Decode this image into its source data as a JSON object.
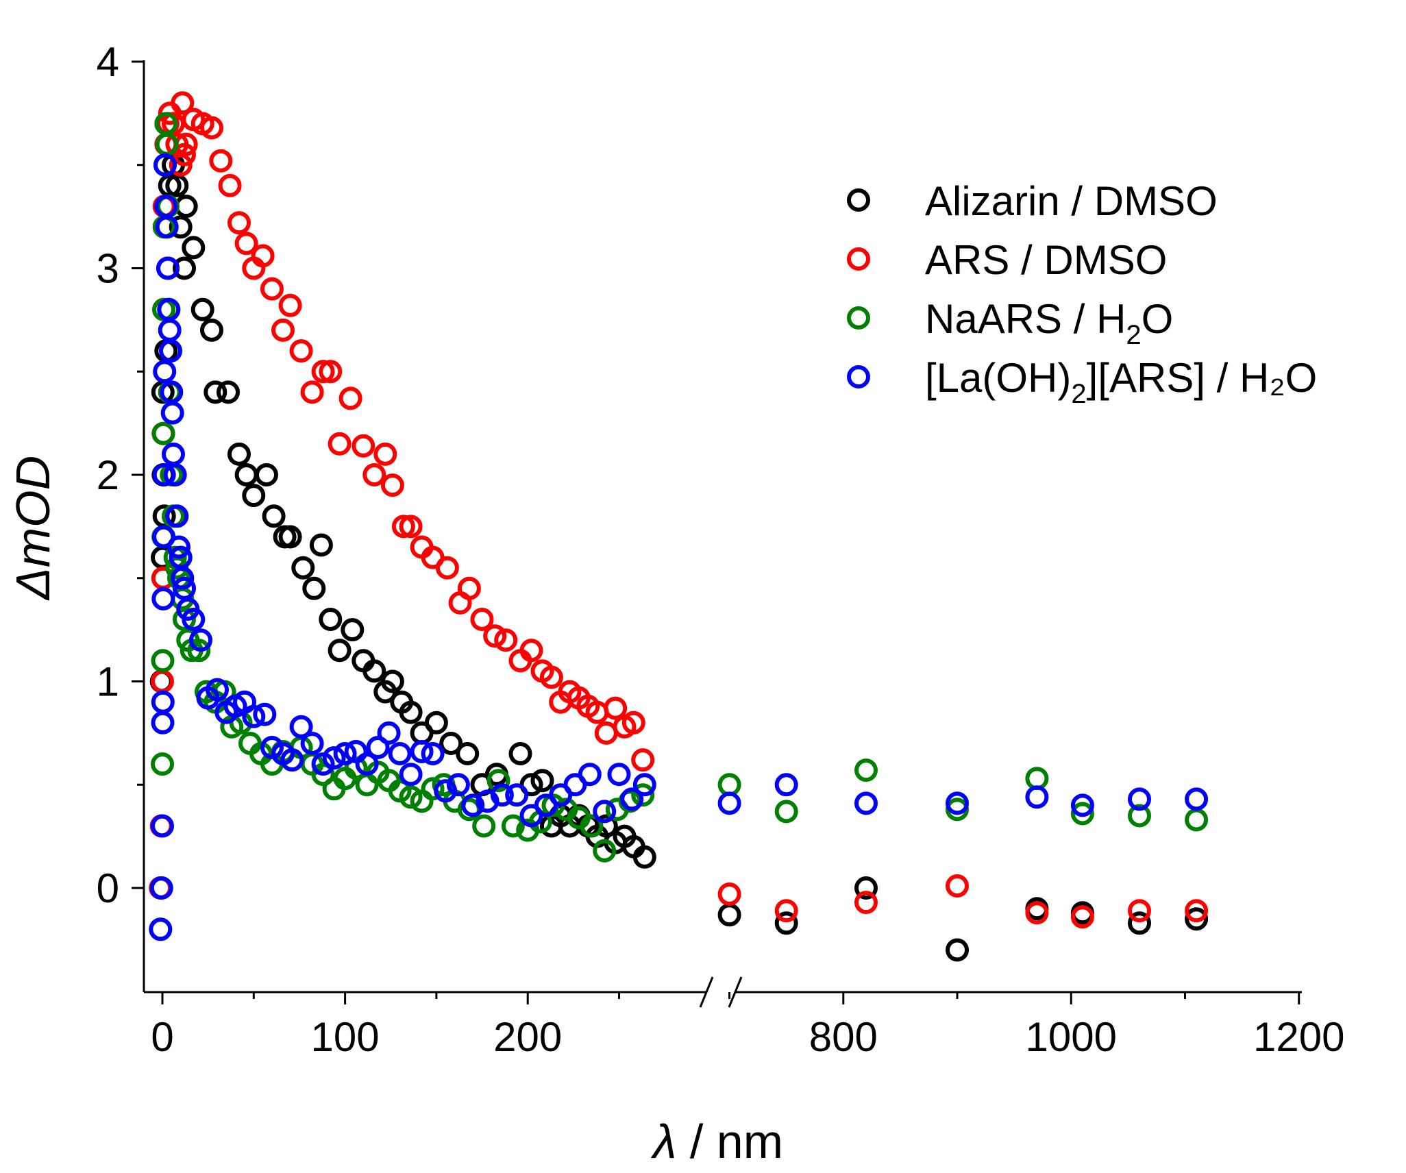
{
  "chart_data": {
    "type": "scatter",
    "xlabel_symbol": "λ",
    "xlabel_rest": " / nm",
    "ylabel": "ΔmOD",
    "ylim": [
      -0.5,
      4
    ],
    "yticks": [
      "0",
      "1",
      "2",
      "3",
      "4"
    ],
    "x_axis_break": {
      "left_segment": [
        -10,
        270
      ],
      "right_segment": [
        600,
        1200
      ]
    },
    "xticks_left": [
      "0",
      "100",
      "200"
    ],
    "xticks_right": [
      "800",
      "1000",
      "1200"
    ],
    "legend_position": "top-right",
    "series": [
      {
        "name": "Alizarin / DMSO",
        "legend": {
          "main": "Alizarin / DMSO",
          "sub": "",
          "tail": ""
        },
        "color": "#000000",
        "x": [
          -1,
          -0.5,
          0,
          0.3,
          0.5,
          1,
          2,
          3,
          4,
          6,
          8,
          10,
          12,
          13,
          17,
          22,
          27,
          29,
          36,
          42,
          46,
          50,
          57,
          61,
          67,
          70,
          77,
          83,
          87,
          92,
          97,
          104,
          110,
          116,
          122,
          126,
          131,
          136,
          142,
          150,
          158,
          167,
          175,
          183,
          196,
          202,
          208,
          213,
          218,
          223,
          228,
          233,
          238,
          243,
          248,
          253,
          258,
          264,
          700,
          750,
          820,
          900,
          970,
          1010,
          1060,
          1110
        ],
        "y": [
          0.0,
          1.0,
          1.6,
          2.4,
          2.0,
          1.8,
          2.6,
          3.0,
          3.4,
          3.5,
          3.4,
          3.2,
          3.0,
          3.3,
          3.1,
          2.8,
          2.7,
          2.4,
          2.4,
          2.1,
          2.0,
          1.9,
          2.0,
          1.8,
          1.7,
          1.7,
          1.55,
          1.45,
          1.66,
          1.3,
          1.15,
          1.25,
          1.1,
          1.05,
          0.95,
          1.0,
          0.9,
          0.85,
          0.75,
          0.8,
          0.7,
          0.65,
          0.5,
          0.55,
          0.65,
          0.5,
          0.52,
          0.3,
          0.35,
          0.3,
          0.35,
          0.3,
          0.25,
          0.3,
          0.22,
          0.25,
          0.2,
          0.15,
          -0.13,
          -0.17,
          0.0,
          -0.3,
          -0.1,
          -0.12,
          -0.17,
          -0.15
        ],
        "note": ""
      },
      {
        "name": "ARS / DMSO",
        "legend": {
          "main": "ARS / DMSO",
          "sub": "",
          "tail": ""
        },
        "color": "#ff0000",
        "x": [
          -1,
          -0.5,
          0,
          0.3,
          0.5,
          0.8,
          1,
          2,
          3,
          4,
          6,
          8,
          10,
          11,
          12,
          13,
          17,
          22,
          27,
          32,
          37,
          42,
          46,
          50,
          55,
          60,
          66,
          70,
          76,
          82,
          88,
          92,
          97,
          103,
          110,
          116,
          122,
          126,
          132,
          136,
          142,
          148,
          156,
          163,
          168,
          175,
          182,
          188,
          196,
          202,
          208,
          213,
          218,
          223,
          228,
          233,
          238,
          243,
          248,
          253,
          258,
          263,
          700,
          750,
          820,
          900,
          970,
          1010,
          1060,
          1110
        ],
        "y": [
          0.0,
          0.3,
          1.0,
          1.5,
          2.2,
          2.8,
          3.3,
          3.6,
          3.7,
          3.75,
          3.7,
          3.6,
          3.5,
          3.8,
          3.55,
          3.6,
          3.72,
          3.7,
          3.68,
          3.52,
          3.4,
          3.22,
          3.12,
          3.0,
          3.06,
          2.9,
          2.7,
          2.82,
          2.6,
          2.4,
          2.5,
          2.5,
          2.15,
          2.37,
          2.14,
          2.0,
          2.1,
          1.95,
          1.75,
          1.75,
          1.65,
          1.6,
          1.55,
          1.38,
          1.45,
          1.3,
          1.22,
          1.2,
          1.1,
          1.15,
          1.05,
          1.02,
          0.9,
          0.95,
          0.92,
          0.88,
          0.85,
          0.75,
          0.87,
          0.78,
          0.8,
          0.62,
          -0.03,
          -0.11,
          -0.07,
          0.01,
          -0.12,
          -0.14,
          -0.11,
          -0.11
        ],
        "note": ""
      },
      {
        "name": "NaARS / H2O",
        "legend": {
          "main": "NaARS / H",
          "sub": "2",
          "tail": "O"
        },
        "color": "#008000",
        "x": [
          -1,
          -0.5,
          0,
          0.2,
          0.4,
          0.6,
          0.8,
          1,
          1.5,
          2,
          2.5,
          3,
          3.5,
          4,
          5,
          6,
          7,
          8,
          9,
          10,
          11,
          12,
          14,
          16,
          20,
          24,
          29,
          34,
          38,
          43,
          48,
          54,
          60,
          66,
          71,
          76,
          82,
          88,
          94,
          100,
          106,
          112,
          118,
          124,
          130,
          136,
          142,
          148,
          154,
          160,
          168,
          176,
          184,
          192,
          200,
          207,
          214,
          221,
          228,
          235,
          242,
          249,
          256,
          263,
          700,
          750,
          820,
          900,
          970,
          1010,
          1060,
          1110
        ],
        "y": [
          -0.2,
          0.0,
          0.6,
          1.1,
          1.7,
          2.2,
          2.8,
          3.2,
          3.5,
          3.7,
          3.6,
          3.3,
          2.8,
          2.4,
          2.0,
          1.8,
          1.6,
          1.55,
          1.5,
          1.6,
          1.4,
          1.3,
          1.2,
          1.15,
          1.15,
          0.95,
          0.9,
          0.95,
          0.78,
          0.8,
          0.7,
          0.65,
          0.6,
          0.66,
          0.62,
          0.68,
          0.6,
          0.55,
          0.48,
          0.53,
          0.58,
          0.5,
          0.56,
          0.52,
          0.47,
          0.44,
          0.42,
          0.48,
          0.5,
          0.42,
          0.38,
          0.3,
          0.52,
          0.3,
          0.28,
          0.32,
          0.4,
          0.38,
          0.34,
          0.3,
          0.18,
          0.38,
          0.42,
          0.45,
          0.5,
          0.37,
          0.57,
          0.38,
          0.53,
          0.36,
          0.35,
          0.33
        ],
        "note": ""
      },
      {
        "name": "[La(OH)2][ARS] / H2O",
        "legend": {
          "main": "[La(OH)",
          "sub": "2",
          "tail": "][ARS] / H₂O"
        },
        "color": "#0000ff",
        "x": [
          -1,
          -0.5,
          0,
          0.2,
          0.3,
          0.5,
          0.8,
          1,
          1.2,
          1.5,
          2,
          2.5,
          3,
          3.5,
          4,
          4.5,
          5,
          5.5,
          6,
          7,
          8,
          9,
          10,
          11,
          12,
          14,
          17,
          21,
          25,
          30,
          35,
          40,
          45,
          50,
          56,
          60,
          66,
          71,
          76,
          82,
          88,
          94,
          100,
          106,
          112,
          118,
          124,
          130,
          136,
          142,
          148,
          155,
          162,
          170,
          178,
          186,
          194,
          202,
          210,
          218,
          226,
          234,
          242,
          250,
          257,
          264,
          700,
          750,
          820,
          900,
          970,
          1010,
          1060,
          1110
        ],
        "y": [
          -0.2,
          0.0,
          0.3,
          0.8,
          0.9,
          1.4,
          1.7,
          2.0,
          2.5,
          3.5,
          3.3,
          3.2,
          3.0,
          2.8,
          2.7,
          2.6,
          2.4,
          2.3,
          2.1,
          2.0,
          1.8,
          1.65,
          1.6,
          1.5,
          1.45,
          1.35,
          1.3,
          1.2,
          0.92,
          0.96,
          0.85,
          0.88,
          0.9,
          0.83,
          0.84,
          0.68,
          0.65,
          0.62,
          0.78,
          0.7,
          0.6,
          0.63,
          0.65,
          0.66,
          0.6,
          0.68,
          0.75,
          0.65,
          0.55,
          0.66,
          0.65,
          0.47,
          0.5,
          0.4,
          0.42,
          0.45,
          0.45,
          0.35,
          0.4,
          0.45,
          0.5,
          0.55,
          0.37,
          0.55,
          0.43,
          0.5,
          0.41,
          0.5,
          0.41,
          0.41,
          0.44,
          0.4,
          0.43,
          0.43
        ],
        "note": ""
      }
    ]
  }
}
